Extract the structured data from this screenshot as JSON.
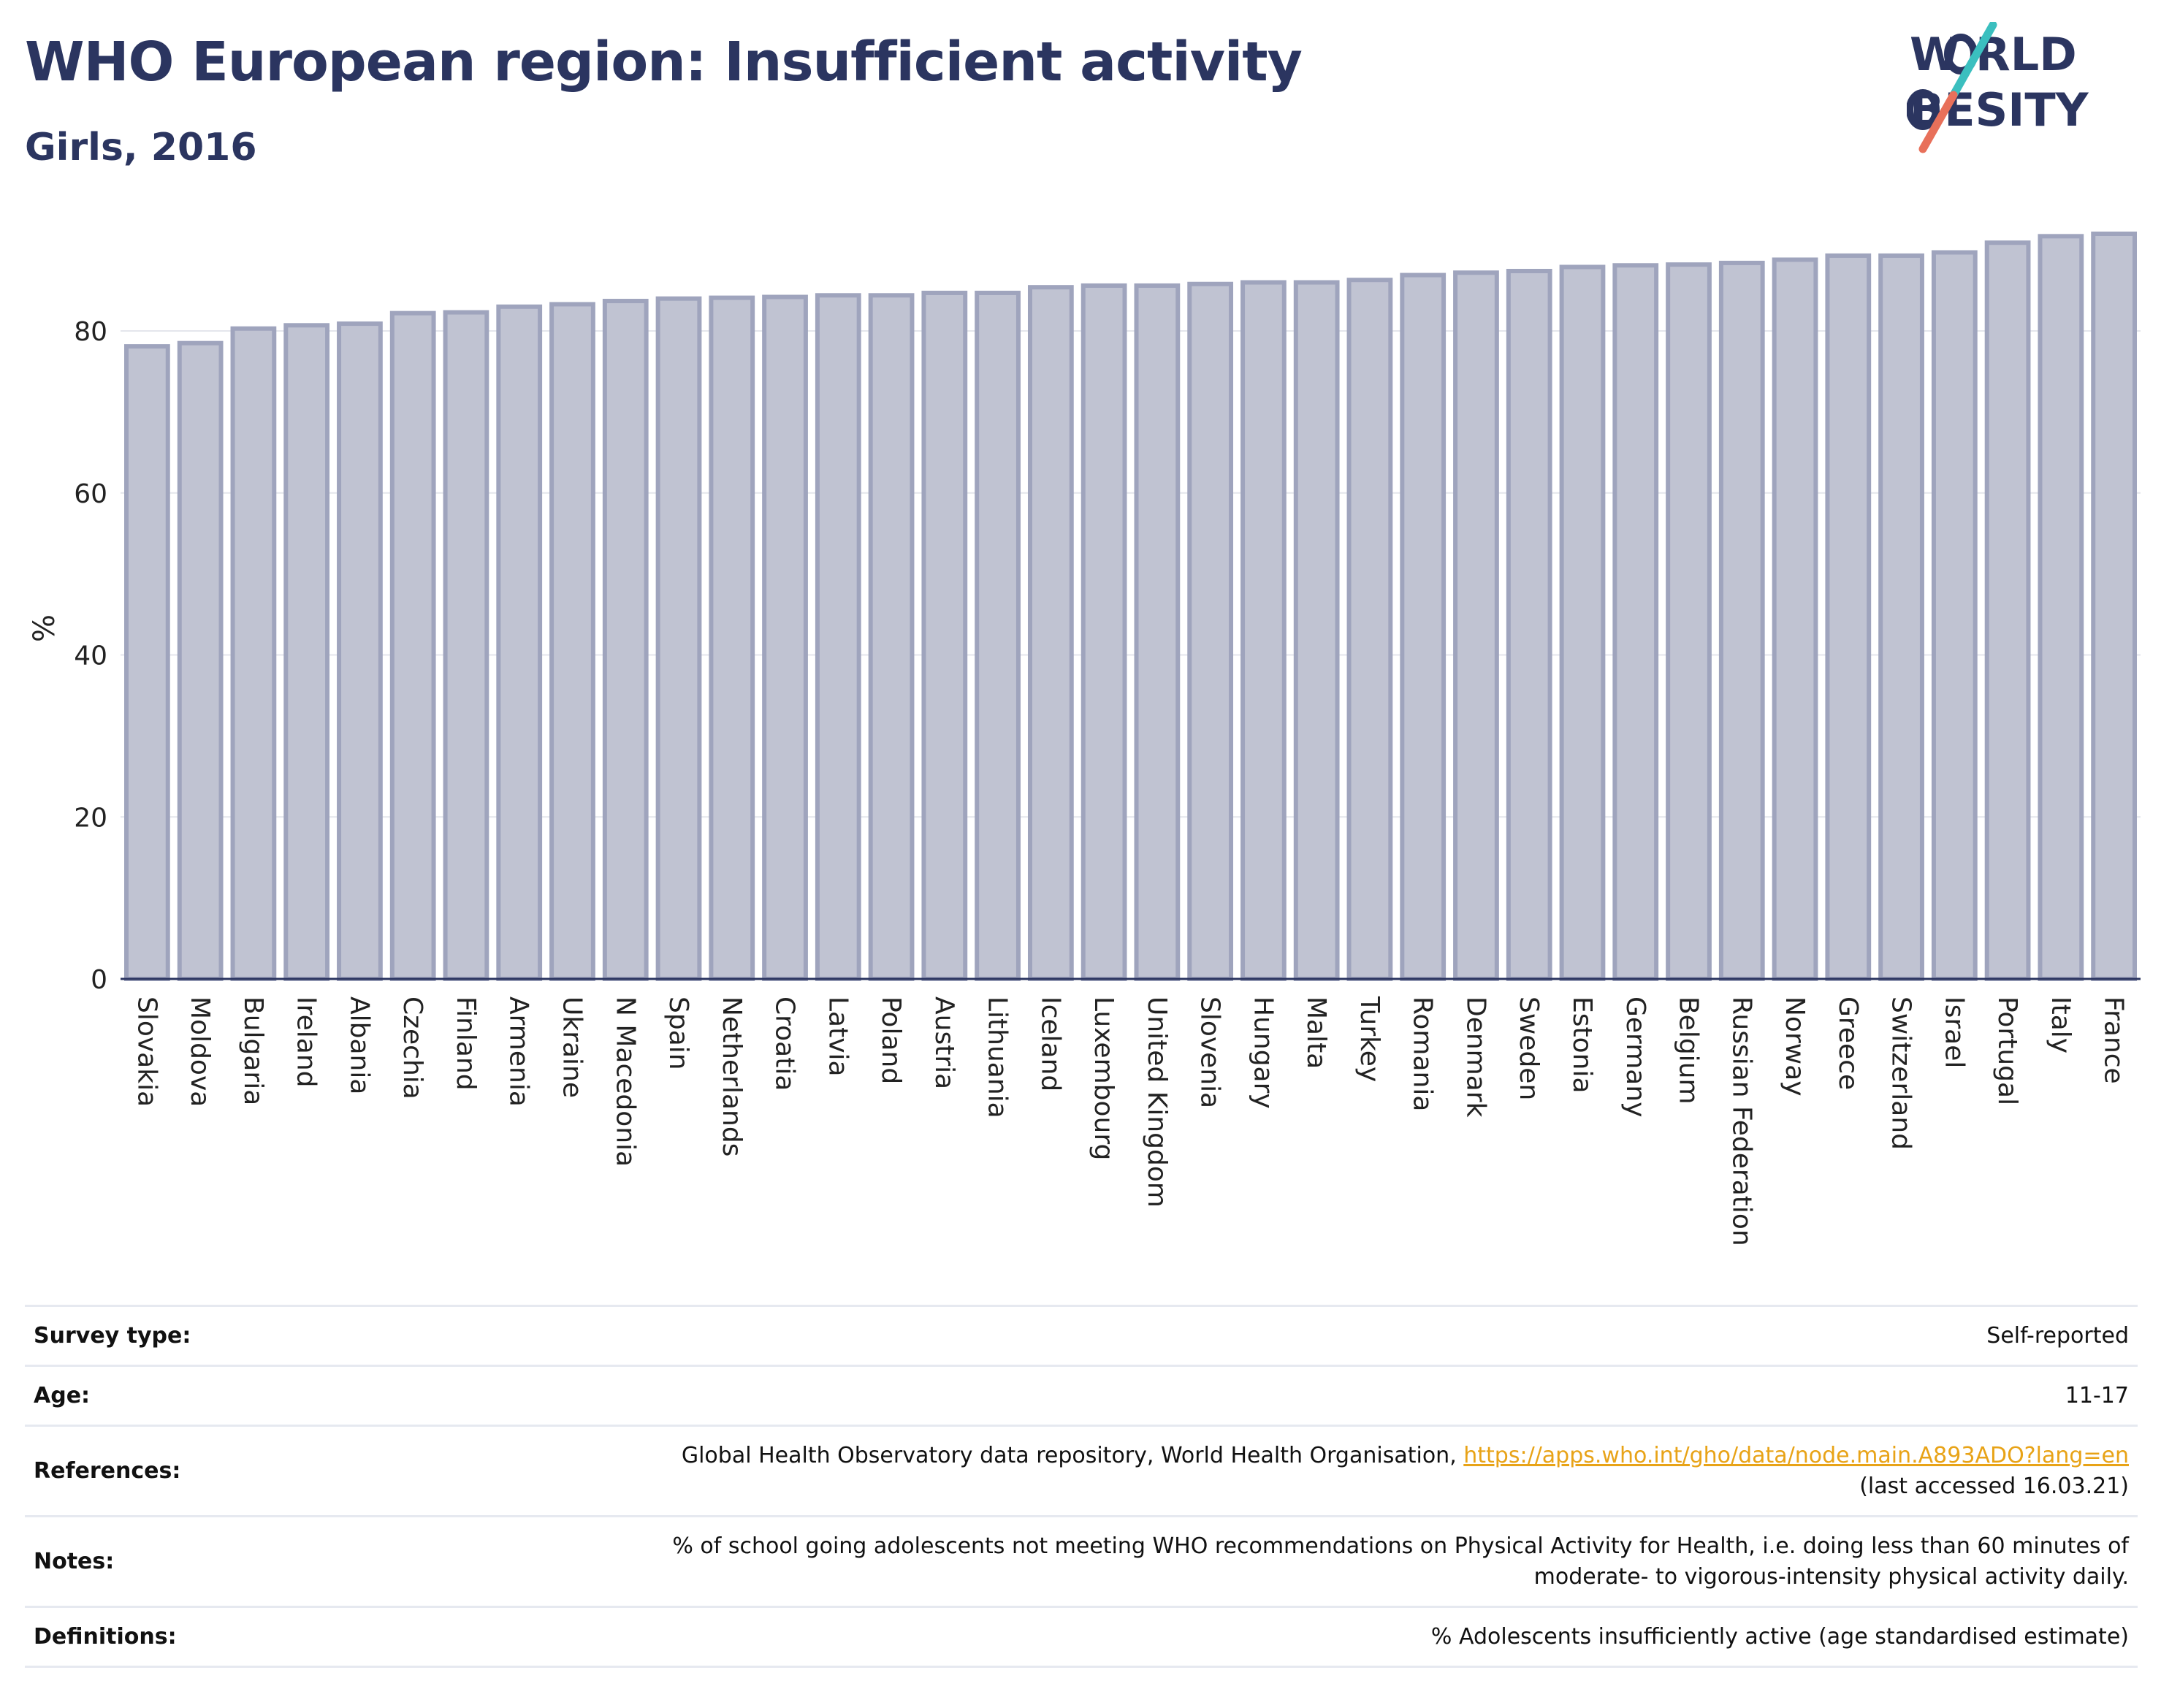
{
  "header": {
    "title": "WHO European region: Insufficient activity",
    "subtitle": "Girls, 2016"
  },
  "logo": {
    "line1": "W RLD",
    "line2": "BESITY",
    "brand_color": "#2b3560",
    "accent_teal": "#3bbfbf",
    "accent_coral": "#e8705a"
  },
  "chart_data": {
    "type": "bar",
    "categories": [
      "Slovakia",
      "Moldova",
      "Bulgaria",
      "Ireland",
      "Albania",
      "Czechia",
      "Finland",
      "Armenia",
      "Ukraine",
      "N Macedonia",
      "Spain",
      "Netherlands",
      "Croatia",
      "Latvia",
      "Poland",
      "Austria",
      "Lithuania",
      "Iceland",
      "Luxembourg",
      "United Kingdom",
      "Slovenia",
      "Hungary",
      "Malta",
      "Turkey",
      "Romania",
      "Denmark",
      "Sweden",
      "Estonia",
      "Germany",
      "Belgium",
      "Russian Federation",
      "Norway",
      "Greece",
      "Switzerland",
      "Israel",
      "Portugal",
      "Italy",
      "France"
    ],
    "values": [
      78.1,
      78.5,
      80.3,
      80.7,
      80.9,
      82.2,
      82.3,
      83.0,
      83.3,
      83.7,
      84.0,
      84.1,
      84.2,
      84.4,
      84.4,
      84.7,
      84.7,
      85.4,
      85.6,
      85.6,
      85.8,
      86.0,
      86.0,
      86.3,
      86.9,
      87.2,
      87.4,
      87.9,
      88.1,
      88.2,
      88.4,
      88.8,
      89.3,
      89.3,
      89.7,
      90.9,
      91.7,
      92.0
    ],
    "title": "WHO European region: Insufficient activity",
    "subtitle": "Girls, 2016",
    "xlabel": "",
    "ylabel": "%",
    "ylim": [
      0,
      92
    ],
    "yticks": [
      0,
      20,
      40,
      60,
      80
    ],
    "grid": true,
    "bar_fill": "#c0c3d2",
    "bar_stroke": "#9fa4bd"
  },
  "info": {
    "survey_type_label": "Survey type:",
    "survey_type_value": "Self-reported",
    "age_label": "Age:",
    "age_value": "11-17",
    "references_label": "References:",
    "references_text": "Global Health Observatory data repository, World Health Organisation, ",
    "references_link": "https://apps.who.int/gho/data/node.main.A893ADO?lang=en",
    "references_accessed": "(last accessed 16.03.21)",
    "notes_label": "Notes:",
    "notes_line1": "% of school going adolescents not meeting WHO recommendations on Physical Activity for Health, i.e. doing less than 60 minutes of",
    "notes_line2": "moderate- to vigorous-intensity physical activity daily.",
    "definitions_label": "Definitions:",
    "definitions_value": "% Adolescents insufficiently active (age standardised estimate)"
  }
}
